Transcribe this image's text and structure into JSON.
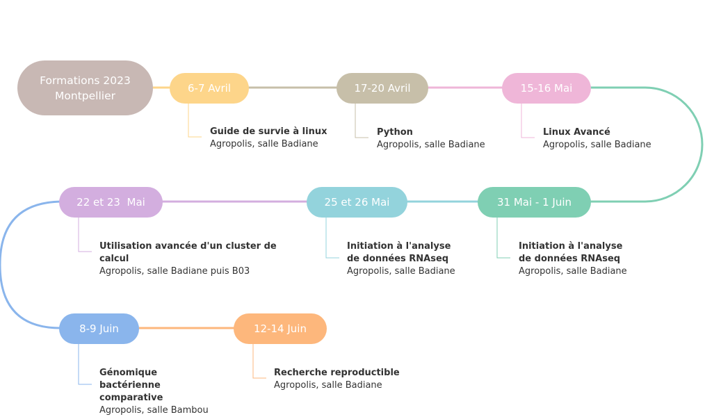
{
  "root": {
    "line1": "Formations 2023",
    "line2": "Montpellier",
    "color": "#c8b8b4"
  },
  "events": [
    {
      "date": "6-7 Avril",
      "title": "Guide de survie à linux",
      "location": "Agropolis, salle Badiane",
      "color": "#fdd58a"
    },
    {
      "date": "17-20 Avril",
      "title": "Python",
      "location": "Agropolis, salle Badiane",
      "color": "#c7bfa9"
    },
    {
      "date": "15-16 Mai",
      "title": "Linux Avancé",
      "location": "Agropolis, salle Badiane",
      "color": "#efb6d8"
    },
    {
      "date": "31 Mai - 1 Juin",
      "title": "Initiation à l'analyse de données RNAseq",
      "location": "Agropolis, salle Badiane",
      "color": "#7fcfb3"
    },
    {
      "date": "25 et 26 Mai",
      "title": "Initiation à l'analyse de données RNAseq",
      "location": "Agropolis, salle Badiane",
      "color": "#93d3dc"
    },
    {
      "date": "22 et 23  Mai",
      "title": "Utilisation avancée d'un cluster de calcul",
      "location": "Agropolis, salle Badiane puis B03",
      "color": "#d3aedf"
    },
    {
      "date": "8-9 Juin",
      "title": "Génomique bactérienne comparative",
      "location": "Agropolis, salle Bambou",
      "color": "#8ab5ec"
    },
    {
      "date": "12-14 Juin",
      "title": "Recherche reproductible",
      "location": "Agropolis, salle Badiane",
      "color": "#fdb77c"
    }
  ]
}
